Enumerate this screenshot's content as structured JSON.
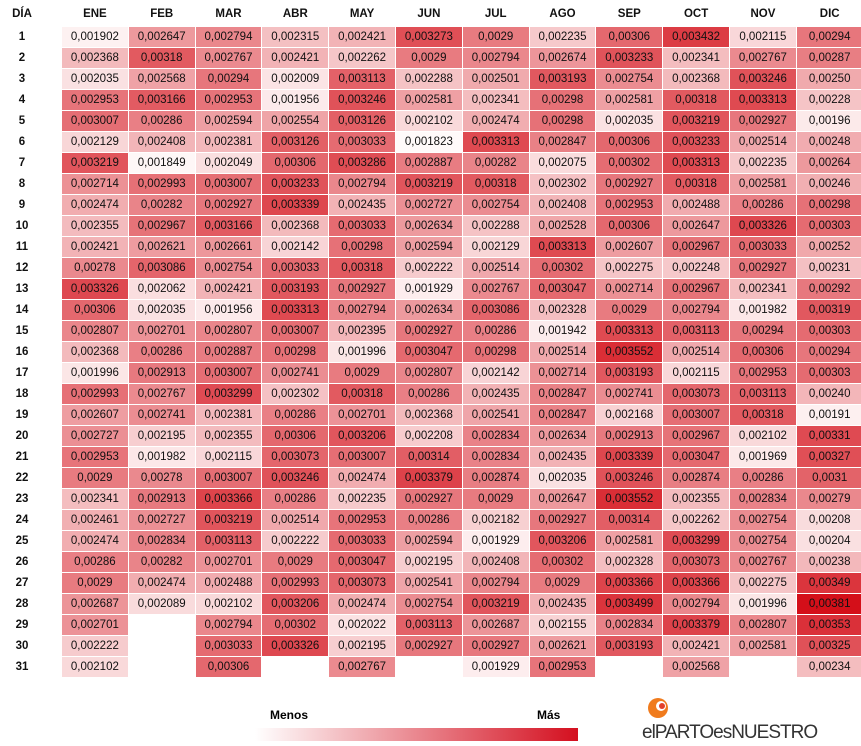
{
  "table": {
    "header": [
      "DÍA",
      "ENE",
      "FEB",
      "MAR",
      "ABR",
      "MAY",
      "JUN",
      "JUL",
      "AGO",
      "SEP",
      "OCT",
      "NOV",
      "DIC"
    ],
    "rows": [
      [
        "1",
        "0,001902",
        "0,002647",
        "0,002794",
        "0,002315",
        "0,002421",
        "0,003273",
        "0,0029",
        "0,002235",
        "0,00306",
        "0,003432",
        "0,002115",
        "0,00294"
      ],
      [
        "2",
        "0,002368",
        "0,00318",
        "0,002767",
        "0,002421",
        "0,002262",
        "0,0029",
        "0,002794",
        "0,002674",
        "0,003233",
        "0,002341",
        "0,002767",
        "0,00287"
      ],
      [
        "3",
        "0,002035",
        "0,002568",
        "0,00294",
        "0,002009",
        "0,003113",
        "0,002288",
        "0,002501",
        "0,003193",
        "0,002754",
        "0,002368",
        "0,003246",
        "0,00250"
      ],
      [
        "4",
        "0,002953",
        "0,003166",
        "0,002953",
        "0,001956",
        "0,003246",
        "0,002581",
        "0,002341",
        "0,00298",
        "0,002581",
        "0,00318",
        "0,003313",
        "0,00228"
      ],
      [
        "5",
        "0,003007",
        "0,00286",
        "0,002594",
        "0,002554",
        "0,003126",
        "0,002102",
        "0,002474",
        "0,00298",
        "0,002035",
        "0,003219",
        "0,002927",
        "0,00196"
      ],
      [
        "6",
        "0,002129",
        "0,002408",
        "0,002381",
        "0,003126",
        "0,003033",
        "0,001823",
        "0,003313",
        "0,002847",
        "0,00306",
        "0,003233",
        "0,002514",
        "0,00248"
      ],
      [
        "7",
        "0,003219",
        "0,001849",
        "0,002049",
        "0,00306",
        "0,003286",
        "0,002887",
        "0,00282",
        "0,002075",
        "0,00302",
        "0,003313",
        "0,002235",
        "0,00264"
      ],
      [
        "8",
        "0,002714",
        "0,002993",
        "0,003007",
        "0,003233",
        "0,002794",
        "0,003219",
        "0,00318",
        "0,002302",
        "0,002927",
        "0,00318",
        "0,002581",
        "0,00246"
      ],
      [
        "9",
        "0,002474",
        "0,00282",
        "0,002927",
        "0,003339",
        "0,002435",
        "0,002727",
        "0,002754",
        "0,002408",
        "0,002953",
        "0,002488",
        "0,00286",
        "0,00298"
      ],
      [
        "10",
        "0,002355",
        "0,002967",
        "0,003166",
        "0,002368",
        "0,003033",
        "0,002634",
        "0,002288",
        "0,002528",
        "0,00306",
        "0,002647",
        "0,003326",
        "0,00303"
      ],
      [
        "11",
        "0,002421",
        "0,002621",
        "0,002661",
        "0,002142",
        "0,00298",
        "0,002594",
        "0,002129",
        "0,003313",
        "0,002607",
        "0,002967",
        "0,003033",
        "0,00252"
      ],
      [
        "12",
        "0,00278",
        "0,003086",
        "0,002754",
        "0,003033",
        "0,00318",
        "0,002222",
        "0,002514",
        "0,00302",
        "0,002275",
        "0,002248",
        "0,002927",
        "0,00231"
      ],
      [
        "13",
        "0,003326",
        "0,002062",
        "0,002421",
        "0,003193",
        "0,002927",
        "0,001929",
        "0,002767",
        "0,003047",
        "0,002714",
        "0,002967",
        "0,002341",
        "0,00292"
      ],
      [
        "14",
        "0,00306",
        "0,002035",
        "0,001956",
        "0,003313",
        "0,002794",
        "0,002634",
        "0,003086",
        "0,002328",
        "0,0029",
        "0,002794",
        "0,001982",
        "0,00319"
      ],
      [
        "15",
        "0,002807",
        "0,002701",
        "0,002807",
        "0,003007",
        "0,002395",
        "0,002927",
        "0,00286",
        "0,001942",
        "0,003313",
        "0,003113",
        "0,00294",
        "0,00303"
      ],
      [
        "16",
        "0,002368",
        "0,00286",
        "0,002887",
        "0,00298",
        "0,001996",
        "0,003047",
        "0,00298",
        "0,002514",
        "0,003552",
        "0,002514",
        "0,00306",
        "0,00294"
      ],
      [
        "17",
        "0,001996",
        "0,002913",
        "0,003007",
        "0,002741",
        "0,0029",
        "0,002807",
        "0,002142",
        "0,002714",
        "0,003193",
        "0,002115",
        "0,002953",
        "0,00303"
      ],
      [
        "18",
        "0,002993",
        "0,002767",
        "0,003299",
        "0,002302",
        "0,00318",
        "0,00286",
        "0,002435",
        "0,002847",
        "0,002741",
        "0,003073",
        "0,003113",
        "0,00240"
      ],
      [
        "19",
        "0,002607",
        "0,002741",
        "0,002381",
        "0,00286",
        "0,002701",
        "0,002368",
        "0,002541",
        "0,002847",
        "0,002168",
        "0,003007",
        "0,00318",
        "0,00191"
      ],
      [
        "20",
        "0,002727",
        "0,002195",
        "0,002355",
        "0,00306",
        "0,003206",
        "0,002208",
        "0,002834",
        "0,002634",
        "0,002913",
        "0,002967",
        "0,002102",
        "0,00331"
      ],
      [
        "21",
        "0,002953",
        "0,001982",
        "0,002115",
        "0,003073",
        "0,003007",
        "0,00314",
        "0,002834",
        "0,002435",
        "0,003339",
        "0,003047",
        "0,001969",
        "0,00327"
      ],
      [
        "22",
        "0,0029",
        "0,00278",
        "0,003007",
        "0,003246",
        "0,002474",
        "0,003379",
        "0,002874",
        "0,002035",
        "0,003246",
        "0,002874",
        "0,00286",
        "0,0031"
      ],
      [
        "23",
        "0,002341",
        "0,002913",
        "0,003366",
        "0,00286",
        "0,002235",
        "0,002927",
        "0,0029",
        "0,002647",
        "0,003552",
        "0,002355",
        "0,002834",
        "0,00279"
      ],
      [
        "24",
        "0,002461",
        "0,002727",
        "0,003219",
        "0,002514",
        "0,002953",
        "0,00286",
        "0,002182",
        "0,002927",
        "0,00314",
        "0,002262",
        "0,002754",
        "0,00208"
      ],
      [
        "25",
        "0,002474",
        "0,002834",
        "0,003113",
        "0,002222",
        "0,003033",
        "0,002594",
        "0,001929",
        "0,003206",
        "0,002581",
        "0,003299",
        "0,002754",
        "0,00204"
      ],
      [
        "26",
        "0,00286",
        "0,00282",
        "0,002701",
        "0,0029",
        "0,003047",
        "0,002195",
        "0,002408",
        "0,00302",
        "0,002328",
        "0,003073",
        "0,002767",
        "0,00238"
      ],
      [
        "27",
        "0,0029",
        "0,002474",
        "0,002488",
        "0,002993",
        "0,003073",
        "0,002541",
        "0,002794",
        "0,0029",
        "0,003366",
        "0,003366",
        "0,002275",
        "0,00349"
      ],
      [
        "28",
        "0,002687",
        "0,002089",
        "0,002102",
        "0,003206",
        "0,002474",
        "0,002754",
        "0,003219",
        "0,002435",
        "0,003499",
        "0,002794",
        "0,001996",
        "0,00381"
      ],
      [
        "29",
        "0,002701",
        null,
        "0,002794",
        "0,00302",
        "0,002022",
        "0,003113",
        "0,002687",
        "0,002155",
        "0,002834",
        "0,003379",
        "0,002807",
        "0,00353"
      ],
      [
        "30",
        "0,002222",
        null,
        "0,003033",
        "0,003326",
        "0,002195",
        "0,002927",
        "0,002927",
        "0,002621",
        "0,003193",
        "0,002421",
        "0,002581",
        "0,00325"
      ],
      [
        "31",
        "0,002102",
        null,
        "0,00306",
        null,
        "0,002767",
        null,
        "0,001929",
        "0,002953",
        null,
        "0,002568",
        null,
        "0,00234"
      ]
    ]
  },
  "legend": {
    "low": "Menos",
    "high": "Más"
  },
  "logo": "elPARTOesNUESTRO"
}
